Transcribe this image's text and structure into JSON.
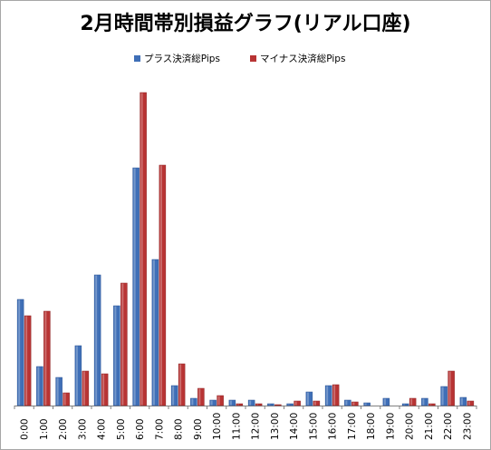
{
  "chart_data": {
    "type": "bar",
    "title": "2月時間帯別損益グラフ(リアル口座)",
    "categories": [
      "0:00",
      "1:00",
      "2:00",
      "3:00",
      "4:00",
      "5:00",
      "6:00",
      "7:00",
      "8:00",
      "9:00",
      "10:00",
      "11:00",
      "12:00",
      "13:00",
      "14:00",
      "15:00",
      "16:00",
      "17:00",
      "18:00",
      "19:00",
      "20:00",
      "21:00",
      "22:00",
      "23:00"
    ],
    "series": [
      {
        "name": "プラス決済総Pips",
        "color": "#3f6fb7",
        "values": [
          117,
          43,
          31,
          66,
          144,
          110,
          262,
          161,
          22,
          8,
          6,
          6,
          6,
          2,
          2,
          15,
          22,
          6,
          3,
          8,
          2,
          8,
          21,
          9
        ]
      },
      {
        "name": "マイナス決済総Pips",
        "color": "#b83434",
        "values": [
          99,
          104,
          14,
          38,
          35,
          135,
          345,
          265,
          46,
          19,
          11,
          2,
          2,
          1,
          5,
          5,
          23,
          4,
          0,
          0,
          8,
          2,
          38,
          5
        ]
      }
    ],
    "xlabel": "",
    "ylabel": "",
    "ylim": [
      0,
      345
    ],
    "grid": false,
    "legend": "top-center"
  }
}
